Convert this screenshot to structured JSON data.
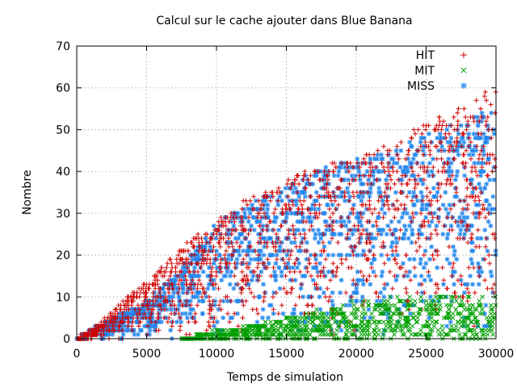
{
  "chart_data": {
    "type": "scatter",
    "title": "Calcul sur le cache  ajouter dans Blue Banana",
    "xlabel": "Temps de simulation",
    "ylabel": "Nombre",
    "xlim": [
      0,
      30000
    ],
    "ylim": [
      0,
      70
    ],
    "xticks": [
      0,
      5000,
      10000,
      15000,
      20000,
      25000,
      30000
    ],
    "yticks": [
      0,
      10,
      20,
      30,
      40,
      50,
      60,
      70
    ],
    "grid": true,
    "legend_position": "top-right",
    "series": [
      {
        "name": "HIT",
        "marker": "plus",
        "color": "#d00000",
        "trend": [
          [
            0,
            0
          ],
          [
            1500,
            3
          ],
          [
            3000,
            8
          ],
          [
            5000,
            14
          ],
          [
            7500,
            22
          ],
          [
            10000,
            28
          ],
          [
            12500,
            34
          ],
          [
            15000,
            38
          ],
          [
            17500,
            41
          ],
          [
            20000,
            44
          ],
          [
            22500,
            46
          ],
          [
            25000,
            52
          ],
          [
            27500,
            55
          ],
          [
            30000,
            61
          ]
        ]
      },
      {
        "name": "MIT",
        "marker": "x",
        "color": "#00a000",
        "trend": [
          [
            7500,
            0
          ],
          [
            10000,
            2
          ],
          [
            12500,
            3
          ],
          [
            15000,
            5
          ],
          [
            17500,
            7
          ],
          [
            20000,
            9
          ],
          [
            22500,
            10
          ],
          [
            25000,
            10
          ],
          [
            27500,
            10
          ],
          [
            30000,
            10
          ]
        ]
      },
      {
        "name": "MISS",
        "marker": "star",
        "color": "#2288ee",
        "trend": [
          [
            0,
            0
          ],
          [
            2500,
            5
          ],
          [
            5000,
            9
          ],
          [
            7500,
            17
          ],
          [
            10000,
            28
          ],
          [
            12500,
            33
          ],
          [
            15000,
            36
          ],
          [
            17500,
            41
          ],
          [
            20000,
            43
          ],
          [
            22500,
            45
          ],
          [
            25000,
            49
          ],
          [
            27500,
            52
          ],
          [
            30000,
            56
          ]
        ]
      }
    ]
  }
}
